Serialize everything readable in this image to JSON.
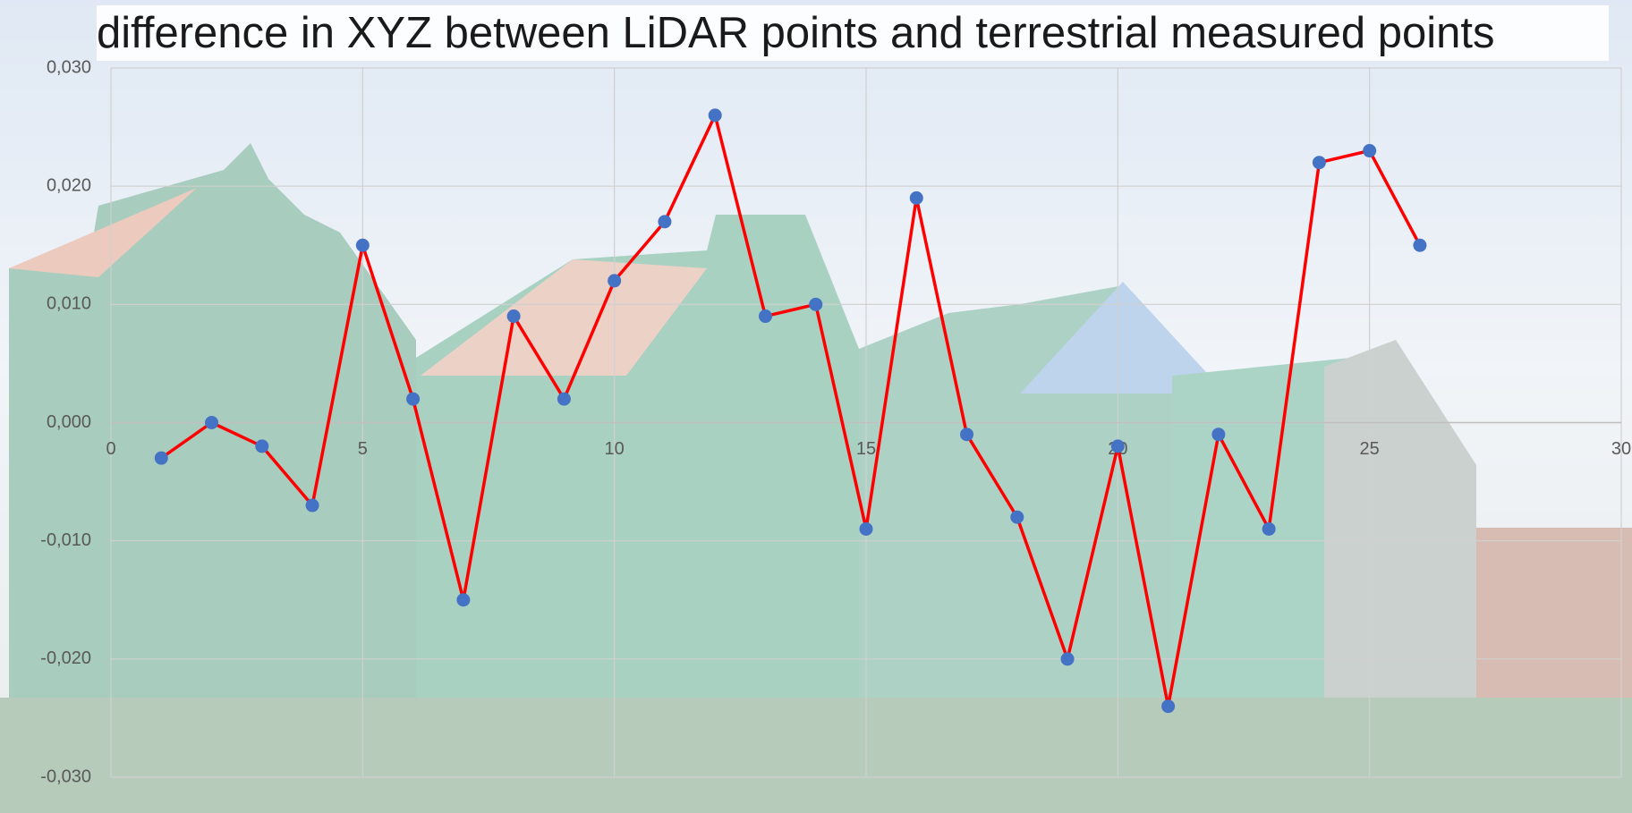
{
  "chart_data": {
    "type": "line",
    "title": "difference in XYZ between LiDAR points and terrestrial measured points",
    "series": [
      {
        "name": "difference in XYZ",
        "color": "#ff0000",
        "marker_color": "#4472c4",
        "x": [
          1,
          2,
          3,
          4,
          5,
          6,
          7,
          8,
          9,
          10,
          11,
          12,
          13,
          14,
          15,
          16,
          17,
          18,
          19,
          20,
          21,
          22,
          23,
          24,
          25,
          26
        ],
        "values": [
          -0.003,
          0,
          -0.002,
          -0.007,
          0.015,
          0.002,
          -0.015,
          0.009,
          0.002,
          0.012,
          0.017,
          0.026,
          0.009,
          0.01,
          -0.009,
          0.019,
          -0.001,
          -0.008,
          -0.02,
          -0.002,
          -0.024,
          -0.001,
          -0.009,
          0.022,
          0.023,
          0.015
        ]
      }
    ],
    "xlim": [
      0,
      30
    ],
    "xticks": [
      0,
      5,
      10,
      15,
      20,
      25,
      30
    ],
    "ylim": [
      -0.03,
      0.03
    ],
    "yticks": [
      {
        "value": -0.03,
        "label": "-0,030"
      },
      {
        "value": -0.02,
        "label": "-0,020"
      },
      {
        "value": -0.01,
        "label": "-0,010"
      },
      {
        "value": 0,
        "label": "0,000"
      },
      {
        "value": 0.01,
        "label": "0,010"
      },
      {
        "value": 0.02,
        "label": "0,020"
      },
      {
        "value": 0.03,
        "label": "0,030"
      }
    ],
    "grid": true
  }
}
